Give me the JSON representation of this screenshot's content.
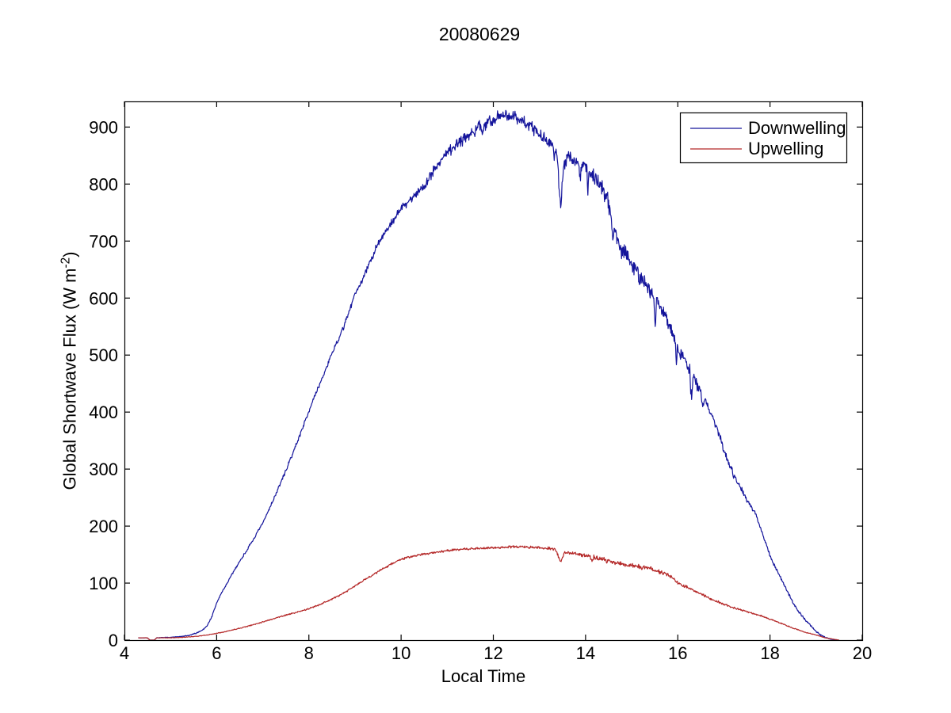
{
  "title": "20080629",
  "axes": {
    "xlabel": "Local Time",
    "ylabel_main": "Global Shortwave Flux (W m",
    "ylabel_sup": "-2",
    "ylabel_close": ")",
    "axis_color": "#000000",
    "background": "#ffffff"
  },
  "chart_data": {
    "type": "line",
    "title": "20080629",
    "xlabel": "Local Time",
    "ylabel": "Global Shortwave Flux (W m-2)",
    "xlim": [
      4,
      20
    ],
    "ylim": [
      0,
      945
    ],
    "xticks": [
      4,
      6,
      8,
      10,
      12,
      14,
      16,
      18,
      20
    ],
    "yticks": [
      0,
      100,
      200,
      300,
      400,
      500,
      600,
      700,
      800,
      900
    ],
    "grid": false,
    "legend_position": "top-right",
    "step": 0.01,
    "series": [
      {
        "name": "Downwelling",
        "color": "#14149b",
        "seed": 7,
        "t_start": 4.3,
        "t_end": 19.45,
        "peak_value": 938,
        "peak_time": 12.2,
        "keypoints": [
          [
            4.3,
            4
          ],
          [
            4.5,
            4
          ],
          [
            4.55,
            0
          ],
          [
            4.65,
            0
          ],
          [
            4.7,
            4
          ],
          [
            5.0,
            5
          ],
          [
            5.2,
            6
          ],
          [
            5.4,
            8
          ],
          [
            5.55,
            12
          ],
          [
            5.7,
            18
          ],
          [
            5.8,
            26
          ],
          [
            5.9,
            42
          ],
          [
            6.0,
            65
          ],
          [
            6.1,
            82
          ],
          [
            6.25,
            103
          ],
          [
            6.4,
            125
          ],
          [
            6.5,
            138
          ],
          [
            6.75,
            170
          ],
          [
            7.0,
            205
          ],
          [
            7.25,
            250
          ],
          [
            7.5,
            297
          ],
          [
            7.75,
            348
          ],
          [
            8.0,
            402
          ],
          [
            8.25,
            452
          ],
          [
            8.5,
            502
          ],
          [
            8.75,
            548
          ],
          [
            9.0,
            607
          ],
          [
            9.25,
            648
          ],
          [
            9.5,
            697
          ],
          [
            9.75,
            727
          ],
          [
            10.0,
            757
          ],
          [
            10.25,
            777
          ],
          [
            10.5,
            797
          ],
          [
            10.75,
            830
          ],
          [
            11.0,
            855
          ],
          [
            11.25,
            872
          ],
          [
            11.5,
            890
          ],
          [
            11.75,
            903
          ],
          [
            12.0,
            913
          ],
          [
            12.1,
            920
          ],
          [
            12.2,
            925
          ],
          [
            12.3,
            922
          ],
          [
            12.5,
            916
          ],
          [
            12.7,
            908
          ],
          [
            12.9,
            895
          ],
          [
            13.1,
            880
          ],
          [
            13.3,
            862
          ],
          [
            13.38,
            858
          ],
          [
            13.43,
            790
          ],
          [
            13.47,
            762
          ],
          [
            13.5,
            810
          ],
          [
            13.55,
            838
          ],
          [
            13.62,
            852
          ],
          [
            13.7,
            846
          ],
          [
            13.8,
            840
          ],
          [
            13.9,
            836
          ],
          [
            14.0,
            833
          ],
          [
            14.1,
            820
          ],
          [
            14.2,
            812
          ],
          [
            14.3,
            800
          ],
          [
            14.4,
            788
          ],
          [
            14.5,
            765
          ],
          [
            14.6,
            735
          ],
          [
            14.7,
            700
          ],
          [
            14.8,
            685
          ],
          [
            14.9,
            672
          ],
          [
            15.0,
            658
          ],
          [
            15.1,
            648
          ],
          [
            15.25,
            630
          ],
          [
            15.4,
            612
          ],
          [
            15.5,
            600
          ],
          [
            15.6,
            588
          ],
          [
            15.75,
            565
          ],
          [
            15.9,
            535
          ],
          [
            16.0,
            512
          ],
          [
            16.15,
            495
          ],
          [
            16.3,
            468
          ],
          [
            16.5,
            432
          ],
          [
            16.6,
            420
          ],
          [
            16.75,
            392
          ],
          [
            16.9,
            360
          ],
          [
            17.0,
            333
          ],
          [
            17.1,
            312
          ],
          [
            17.25,
            285
          ],
          [
            17.4,
            262
          ],
          [
            17.5,
            246
          ],
          [
            17.6,
            232
          ],
          [
            17.7,
            220
          ],
          [
            17.8,
            195
          ],
          [
            17.9,
            172
          ],
          [
            18.0,
            148
          ],
          [
            18.1,
            130
          ],
          [
            18.25,
            106
          ],
          [
            18.4,
            82
          ],
          [
            18.5,
            66
          ],
          [
            18.6,
            52
          ],
          [
            18.75,
            37
          ],
          [
            18.9,
            24
          ],
          [
            19.0,
            15
          ],
          [
            19.1,
            9
          ],
          [
            19.2,
            5
          ],
          [
            19.3,
            2
          ],
          [
            19.45,
            0
          ]
        ],
        "noise_amp": [
          [
            4.3,
            0.3
          ],
          [
            5.5,
            1
          ],
          [
            6.5,
            2.5
          ],
          [
            8,
            4
          ],
          [
            9,
            6
          ],
          [
            10,
            8
          ],
          [
            10.8,
            12
          ],
          [
            11.5,
            13
          ],
          [
            12.3,
            13
          ],
          [
            13.3,
            12
          ],
          [
            13.7,
            14
          ],
          [
            14.1,
            17
          ],
          [
            14.7,
            20
          ],
          [
            15.1,
            16
          ],
          [
            15.6,
            12
          ],
          [
            16.1,
            14
          ],
          [
            16.6,
            9
          ],
          [
            17.2,
            6
          ],
          [
            17.8,
            4
          ],
          [
            18.3,
            3
          ],
          [
            18.8,
            2
          ],
          [
            19.2,
            1
          ],
          [
            19.45,
            0
          ]
        ],
        "dip_events": [
          {
            "from": 13.8,
            "to": 16.9,
            "prob": 0.025,
            "min": 15,
            "max": 55
          },
          {
            "from": 11.0,
            "to": 13.3,
            "prob": 0.012,
            "min": 8,
            "max": 28
          },
          {
            "from": 8.3,
            "to": 9.6,
            "prob": 0.01,
            "min": 5,
            "max": 15
          },
          {
            "from": 16.9,
            "to": 17.9,
            "prob": 0.012,
            "min": 5,
            "max": 14
          }
        ]
      },
      {
        "name": "Upwelling",
        "color": "#b42828",
        "seed": 11,
        "t_start": 4.3,
        "t_end": 19.5,
        "peak_value": 166,
        "peak_time": 12.5,
        "keypoints": [
          [
            4.3,
            4
          ],
          [
            4.5,
            4
          ],
          [
            4.55,
            0
          ],
          [
            4.65,
            0
          ],
          [
            4.7,
            4
          ],
          [
            5.0,
            4
          ],
          [
            5.3,
            5
          ],
          [
            5.6,
            7
          ],
          [
            5.8,
            9
          ],
          [
            6.0,
            12
          ],
          [
            6.25,
            16
          ],
          [
            6.5,
            21
          ],
          [
            6.75,
            26
          ],
          [
            7.0,
            32
          ],
          [
            7.25,
            38
          ],
          [
            7.5,
            44
          ],
          [
            7.75,
            49
          ],
          [
            8.0,
            55
          ],
          [
            8.25,
            63
          ],
          [
            8.5,
            72
          ],
          [
            8.75,
            82
          ],
          [
            9.0,
            95
          ],
          [
            9.25,
            108
          ],
          [
            9.5,
            120
          ],
          [
            9.75,
            132
          ],
          [
            10.0,
            142
          ],
          [
            10.25,
            147
          ],
          [
            10.5,
            151
          ],
          [
            10.75,
            154
          ],
          [
            11.0,
            157
          ],
          [
            11.25,
            159
          ],
          [
            11.5,
            160
          ],
          [
            11.75,
            161
          ],
          [
            12.0,
            162
          ],
          [
            12.25,
            163
          ],
          [
            12.5,
            164
          ],
          [
            12.75,
            163
          ],
          [
            13.0,
            162
          ],
          [
            13.2,
            161
          ],
          [
            13.35,
            159
          ],
          [
            13.43,
            143
          ],
          [
            13.47,
            138
          ],
          [
            13.55,
            154
          ],
          [
            13.7,
            152
          ],
          [
            14.0,
            149
          ],
          [
            14.25,
            144
          ],
          [
            14.5,
            139
          ],
          [
            14.75,
            134
          ],
          [
            15.0,
            131
          ],
          [
            15.25,
            128
          ],
          [
            15.5,
            123
          ],
          [
            15.75,
            116
          ],
          [
            15.9,
            108
          ],
          [
            16.0,
            100
          ],
          [
            16.25,
            91
          ],
          [
            16.5,
            81
          ],
          [
            16.75,
            71
          ],
          [
            17.0,
            63
          ],
          [
            17.25,
            56
          ],
          [
            17.5,
            50
          ],
          [
            17.75,
            44
          ],
          [
            18.0,
            37
          ],
          [
            18.25,
            29
          ],
          [
            18.5,
            21
          ],
          [
            18.75,
            14
          ],
          [
            19.0,
            9
          ],
          [
            19.2,
            4
          ],
          [
            19.35,
            2
          ],
          [
            19.5,
            0
          ]
        ],
        "noise_amp": [
          [
            4.3,
            0.2
          ],
          [
            6,
            0.8
          ],
          [
            8,
            1.5
          ],
          [
            9.5,
            2
          ],
          [
            11,
            2.2
          ],
          [
            12.5,
            2.5
          ],
          [
            13.6,
            3
          ],
          [
            14.2,
            4.5
          ],
          [
            15.2,
            4.5
          ],
          [
            16,
            3.5
          ],
          [
            16.8,
            2.5
          ],
          [
            17.5,
            2
          ],
          [
            18.2,
            1.2
          ],
          [
            19,
            0.6
          ],
          [
            19.5,
            0
          ]
        ],
        "dip_events": [
          {
            "from": 13.8,
            "to": 16.1,
            "prob": 0.02,
            "min": 3,
            "max": 12
          }
        ]
      }
    ]
  }
}
